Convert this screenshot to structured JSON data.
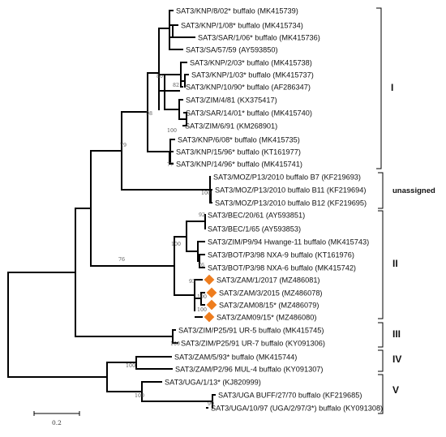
{
  "figure": {
    "leaves": [
      {
        "label": "SAT3/KNP/8/02* buffalo (MK415739)",
        "marker": false
      },
      {
        "label": "SAT3/KNP/1/08* buffalo (MK415734)",
        "marker": false
      },
      {
        "label": "SAT3/SAR/1/06* buffalo (MK415736)",
        "marker": false
      },
      {
        "label": "SAT3/SA/57/59 (AY593850)",
        "marker": false
      },
      {
        "label": "SAT3/KNP/2/03* buffalo (MK415738)",
        "marker": false
      },
      {
        "label": "SAT3/KNP/1/03* buffalo (MK415737)",
        "marker": false
      },
      {
        "label": "SAT3/KNP/10/90* buffalo (AF286347)",
        "marker": false
      },
      {
        "label": "SAT3/ZIM/4/81 (KX375417)",
        "marker": false
      },
      {
        "label": "SAT3/SAR/14/01* buffalo (MK415740)",
        "marker": false
      },
      {
        "label": "SAT3/ZIM/6/91 (KM268901)",
        "marker": false
      },
      {
        "label": "SAT3/KNP/6/08* buffalo (MK415735)",
        "marker": false
      },
      {
        "label": "SAT3/KNP/15/96* buffalo (KT161977)",
        "marker": false
      },
      {
        "label": "SAT3/KNP/14/96* buffalo (MK415741)",
        "marker": false
      },
      {
        "label": "SAT3/MOZ/P13/2010 buffalo B7 (KF219693)",
        "marker": false
      },
      {
        "label": "SAT3/MOZ/P13/2010 buffalo B11 (KF219694)",
        "marker": false
      },
      {
        "label": "SAT3/MOZ/P13/2010 buffalo B12 (KF219695)",
        "marker": false
      },
      {
        "label": "SAT3/BEC/20/61 (AY593851)",
        "marker": false
      },
      {
        "label": "SAT3/BEC/1/65 (AY593853)",
        "marker": false
      },
      {
        "label": "SAT3/ZIM/P9/94 Hwange-11 buffalo (MK415743)",
        "marker": false
      },
      {
        "label": "SAT3/BOT/P3/98 NXA-9 buffalo (KT161976)",
        "marker": false
      },
      {
        "label": "SAT3/BOT/P3/98 NXA-6 buffalo (MK415742)",
        "marker": false
      },
      {
        "label": "SAT3/ZAM/1/2017 (MZ486081)",
        "marker": true
      },
      {
        "label": "SAT3/ZAM/3/2015 (MZ486078)",
        "marker": true
      },
      {
        "label": "SAT3/ZAM08/15* (MZ486079)",
        "marker": true
      },
      {
        "label": "SAT3/ZAM09/15* (MZ486080)",
        "marker": true
      },
      {
        "label": "SAT3/ZIM/P25/91 UR-5 buffalo (MK415745)",
        "marker": false
      },
      {
        "label": "SAT3/ZIM/P25/91 UR-7 buffalo (KY091306)",
        "marker": false
      },
      {
        "label": "SAT3/ZAM/5/93* buffalo (MK415744)",
        "marker": false
      },
      {
        "label": "SAT3/ZAM/P2/96 MUL-4 buffalo (KY091307)",
        "marker": false
      },
      {
        "label": "SAT3/UGA/1/13* (KJ820999)",
        "marker": false
      },
      {
        "label": "SAT3/UGA BUFF/27/70 buffalo (KF219685)",
        "marker": false
      },
      {
        "label": "SAT3/UGA/10/97 (UGA/2/97/3*) buffalo (KY091308)",
        "marker": false
      }
    ],
    "bootstrap_values": [
      "80",
      "82",
      "98",
      "100",
      "77",
      "79",
      "100",
      "92",
      "100",
      "76",
      "93",
      "100",
      "100",
      "76",
      "100",
      "100",
      "100",
      "99"
    ],
    "clades": [
      "I",
      "unassigned",
      "II",
      "III",
      "IV",
      "V"
    ],
    "scale_bar_label": "0.2",
    "colors": {
      "marker": "#ee7d1e",
      "line": "#000000",
      "text": "#111111",
      "bootstrap": "#555555"
    }
  }
}
